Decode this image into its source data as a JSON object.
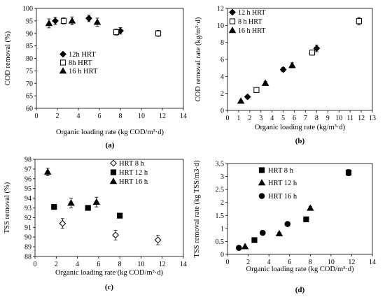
{
  "chart_data": [
    {
      "type": "scatter",
      "panel_label": "(a)",
      "xlabel": "Organic loading rate (kg COD/m³·d)",
      "ylabel": "COD removal (%)",
      "xlim": [
        0,
        14
      ],
      "ylim": [
        60,
        100
      ],
      "xticks": [
        0,
        2,
        4,
        6,
        8,
        10,
        12,
        14
      ],
      "yticks": [
        60,
        65,
        70,
        75,
        80,
        85,
        90,
        95,
        100
      ],
      "grid": false,
      "legend_position": "center-left",
      "series": [
        {
          "name": "12h HRT",
          "marker": "diamond",
          "x": [
            1.8,
            5.0,
            8.0
          ],
          "y": [
            95.0,
            96.0,
            91.0
          ],
          "err": [
            1.5,
            1.3,
            1.3
          ]
        },
        {
          "name": "8h HRT",
          "marker": "open-square",
          "x": [
            2.6,
            7.6,
            11.6
          ],
          "y": [
            95.0,
            90.5,
            90.0
          ],
          "err": [
            1.2,
            1.2,
            1.2
          ]
        },
        {
          "name": "16 h HRT",
          "marker": "triangle",
          "x": [
            1.2,
            3.4,
            5.8
          ],
          "y": [
            94.0,
            95.0,
            94.5
          ],
          "err": [
            1.8,
            1.6,
            1.6
          ]
        }
      ]
    },
    {
      "type": "scatter",
      "panel_label": "(b)",
      "xlabel": "Organic loading rate (kg/m³·d)",
      "ylabel": "COD removal rate (kg/m³·d)",
      "xlim": [
        0,
        13
      ],
      "ylim": [
        0,
        12
      ],
      "xticks": [
        0,
        1,
        2,
        3,
        4,
        5,
        6,
        7,
        8,
        9,
        10,
        11,
        12,
        13
      ],
      "yticks": [
        0,
        2,
        4,
        6,
        8,
        10,
        12
      ],
      "grid": false,
      "legend_position": "top-left",
      "series": [
        {
          "name": "12 h HRT",
          "marker": "diamond",
          "x": [
            1.8,
            5.0,
            8.0
          ],
          "y": [
            1.6,
            4.8,
            7.3
          ],
          "err": [
            0.15,
            0.25,
            0.4
          ]
        },
        {
          "name": "8 h HRT",
          "marker": "open-square",
          "x": [
            2.6,
            7.6,
            11.8
          ],
          "y": [
            2.4,
            6.8,
            10.5
          ],
          "err": [
            0.15,
            0.3,
            0.45
          ]
        },
        {
          "name": "16 h HRT",
          "marker": "triangle",
          "x": [
            1.2,
            3.4,
            5.8
          ],
          "y": [
            1.1,
            3.2,
            5.3
          ],
          "err": [
            0.1,
            0.2,
            0.3
          ]
        }
      ]
    },
    {
      "type": "scatter",
      "panel_label": "(c)",
      "xlabel": "Organic loading rate (kg COD/m³·d)",
      "ylabel": "TSS removal (%)",
      "xlim": [
        0,
        14
      ],
      "ylim": [
        88,
        98
      ],
      "xticks": [
        0,
        2,
        4,
        6,
        8,
        10,
        12,
        14
      ],
      "yticks": [
        88,
        89,
        90,
        91,
        92,
        93,
        94,
        95,
        96,
        97,
        98
      ],
      "grid": false,
      "legend_position": "top-right",
      "series": [
        {
          "name": "HRT 8 h",
          "marker": "open-diamond",
          "x": [
            2.6,
            7.6,
            11.6
          ],
          "y": [
            91.4,
            90.2,
            89.7
          ],
          "err": [
            0.5,
            0.5,
            0.5
          ]
        },
        {
          "name": "HRT 12 h",
          "marker": "square",
          "x": [
            1.8,
            5.0,
            8.0
          ],
          "y": [
            93.1,
            93.0,
            92.2
          ],
          "err": [
            0.2,
            0.2,
            0.2
          ]
        },
        {
          "name": "HRT 16 h",
          "marker": "triangle",
          "x": [
            1.2,
            3.4,
            5.8
          ],
          "y": [
            96.7,
            93.5,
            93.6
          ],
          "err": [
            0.4,
            0.5,
            0.5
          ]
        }
      ]
    },
    {
      "type": "scatter",
      "panel_label": "(d)",
      "xlabel": "Organic loading rate (kg COD/m³·d)",
      "ylabel": "TSS removal rate (kg TSS/m3·d)",
      "xlim": [
        0,
        14
      ],
      "ylim": [
        0,
        3.5
      ],
      "xticks": [
        0,
        2,
        4,
        6,
        8,
        10,
        12,
        14
      ],
      "yticks": [
        0,
        0.5,
        1,
        1.5,
        2,
        2.5,
        3,
        3.5
      ],
      "grid": false,
      "legend_position": "top-left",
      "series": [
        {
          "name": "HRT 8 h",
          "marker": "square",
          "x": [
            2.6,
            7.6,
            11.7
          ],
          "y": [
            0.55,
            1.35,
            3.15
          ],
          "err": [
            0.0,
            0.0,
            0.12
          ]
        },
        {
          "name": "HRT 12 h",
          "marker": "triangle",
          "x": [
            1.7,
            5.0,
            8.0
          ],
          "y": [
            0.3,
            0.8,
            1.78
          ],
          "err": [
            0.0,
            0.05,
            0.07
          ]
        },
        {
          "name": "HRT 16 h",
          "marker": "circle",
          "x": [
            1.1,
            3.4,
            5.8
          ],
          "y": [
            0.25,
            0.83,
            1.17
          ],
          "err": [
            0.0,
            0.0,
            0.0
          ]
        }
      ]
    }
  ]
}
